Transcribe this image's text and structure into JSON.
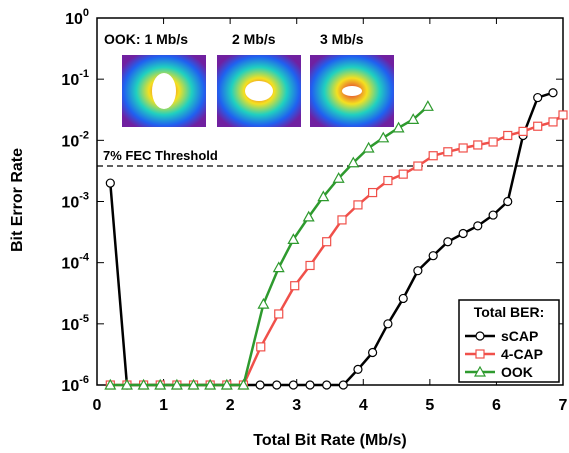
{
  "chart_data": {
    "type": "line",
    "x_label": "Total Bit Rate (Mb/s)",
    "y_label": "Bit Error Rate",
    "log_y": true,
    "xlim": [
      0,
      7
    ],
    "xticks": [
      0,
      1,
      2,
      3,
      4,
      5,
      6,
      7
    ],
    "ylim": [
      1e-06,
      1
    ],
    "yticks": [
      {
        "value": 1e-06,
        "label": "10",
        "exponent": "-6"
      },
      {
        "value": 1e-05,
        "label": "10",
        "exponent": "-5"
      },
      {
        "value": 0.0001,
        "label": "10",
        "exponent": "-4"
      },
      {
        "value": 0.001,
        "label": "10",
        "exponent": "-3"
      },
      {
        "value": 0.01,
        "label": "10",
        "exponent": "-2"
      },
      {
        "value": 0.1,
        "label": "10",
        "exponent": "-1"
      },
      {
        "value": 1,
        "label": "10",
        "exponent": "0"
      }
    ],
    "threshold": {
      "value": 0.0038,
      "label": "7% FEC Threshold"
    },
    "eye_labels": [
      "OOK: 1 Mb/s",
      "2 Mb/s",
      "3 Mb/s"
    ],
    "legend_title": "Total BER:",
    "legend": "lower right",
    "series": [
      {
        "name": "sCAP",
        "color": "#000000",
        "marker": "circle",
        "x": [
          0.2,
          0.45,
          2.45,
          2.7,
          2.95,
          3.2,
          3.45,
          3.7,
          3.92,
          4.14,
          4.37,
          4.6,
          4.82,
          5.05,
          5.27,
          5.5,
          5.72,
          5.95,
          6.17,
          6.4,
          6.62,
          6.85
        ],
        "values": [
          0.002,
          1e-06,
          1e-06,
          1e-06,
          1e-06,
          1e-06,
          1e-06,
          1e-06,
          1.8e-06,
          3.4e-06,
          1e-05,
          2.6e-05,
          7.4e-05,
          0.00013,
          0.00022,
          0.0003,
          0.0004,
          0.0006,
          0.001,
          0.012,
          0.05,
          0.06
        ]
      },
      {
        "name": "4-CAP",
        "color": "#f0504a",
        "marker": "square",
        "x": [
          0.2,
          0.45,
          0.7,
          0.95,
          1.2,
          1.45,
          1.7,
          1.95,
          2.2,
          2.46,
          2.73,
          2.97,
          3.2,
          3.45,
          3.68,
          3.92,
          4.14,
          4.37,
          4.6,
          4.82,
          5.05,
          5.27,
          5.5,
          5.72,
          5.95,
          6.17,
          6.4,
          6.62,
          6.85,
          7
        ],
        "values": [
          1e-06,
          1e-06,
          1e-06,
          1e-06,
          1e-06,
          1e-06,
          1e-06,
          1e-06,
          1e-06,
          4.2e-06,
          1.45e-05,
          4.2e-05,
          9e-05,
          0.00022,
          0.0005,
          0.00088,
          0.0014,
          0.0022,
          0.0028,
          0.0038,
          0.0056,
          0.0065,
          0.0075,
          0.0084,
          0.0094,
          0.012,
          0.014,
          0.017,
          0.02,
          0.026
        ]
      },
      {
        "name": "OOK",
        "color": "#2e9a2e",
        "marker": "triangle",
        "x": [
          0.2,
          0.45,
          0.7,
          0.95,
          1.2,
          1.45,
          1.7,
          1.95,
          2.2,
          2.5,
          2.73,
          2.95,
          3.18,
          3.4,
          3.63,
          3.85,
          4.08,
          4.3,
          4.53,
          4.75,
          4.97
        ],
        "values": [
          1e-06,
          1e-06,
          1e-06,
          1e-06,
          1e-06,
          1e-06,
          1e-06,
          1e-06,
          1e-06,
          2.1e-05,
          8.3e-05,
          0.00024,
          0.00056,
          0.0012,
          0.0024,
          0.0043,
          0.0075,
          0.011,
          0.016,
          0.022,
          0.036
        ]
      }
    ]
  }
}
